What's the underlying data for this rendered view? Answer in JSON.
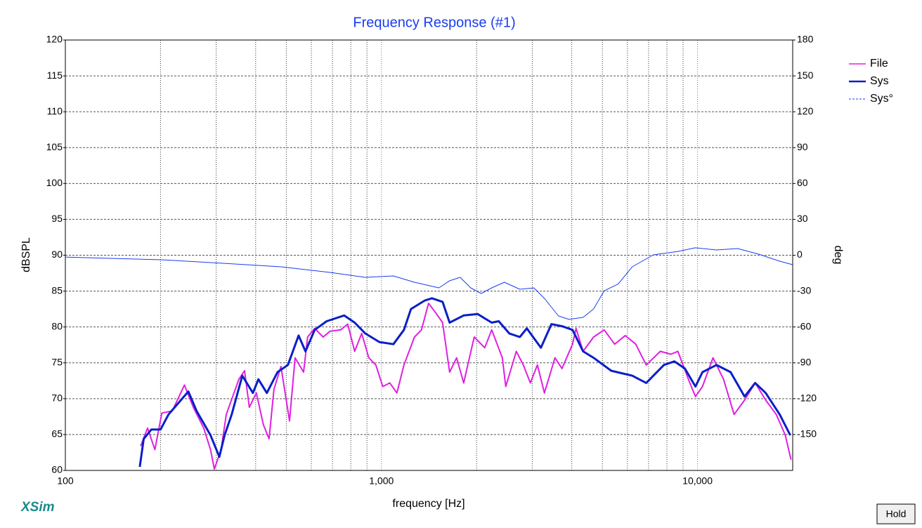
{
  "chart_data": {
    "type": "line",
    "title": "Frequency Response (#1)",
    "xlabel": "frequency [Hz]",
    "ylabel": "dBSPL",
    "y2label": "deg",
    "xscale": "log",
    "xlim": [
      100,
      20000
    ],
    "xticks": [
      100,
      {
        "value": 1000,
        "label": "1,000"
      },
      {
        "value": 10000,
        "label": "10,000"
      }
    ],
    "xminor": [
      200,
      300,
      400,
      500,
      600,
      700,
      800,
      900,
      2000,
      3000,
      4000,
      5000,
      6000,
      7000,
      8000,
      9000
    ],
    "ylim": [
      60,
      120
    ],
    "yticks": [
      60,
      65,
      70,
      75,
      80,
      85,
      90,
      95,
      100,
      105,
      110,
      115,
      120
    ],
    "y2lim": [
      -180,
      180
    ],
    "y2ticks": [
      -150,
      -120,
      -90,
      -60,
      -30,
      0,
      30,
      60,
      90,
      120,
      150,
      180
    ],
    "grid": true,
    "legend": "right",
    "series": [
      {
        "name": "File",
        "color": "#e020e0",
        "width": 2,
        "x": [
          173,
          182,
          192,
          202,
          218,
          238,
          254,
          274,
          288,
          296,
          311,
          323,
          354,
          369,
          382,
          402,
          423,
          441,
          457,
          481,
          512,
          533,
          567,
          584,
          615,
          654,
          688,
          743,
          782,
          823,
          866,
          912,
          960,
          1010,
          1063,
          1119,
          1178,
          1272,
          1339,
          1409,
          1483,
          1561,
          1643,
          1729,
          1820,
          1965,
          2122,
          2233,
          2412,
          2474,
          2671,
          2811,
          2959,
          3114,
          3278,
          3540,
          3725,
          4022,
          4126,
          4343,
          4690,
          5064,
          5468,
          5904,
          6375,
          6883,
          7624,
          8233,
          8666,
          9356,
          9847,
          10365,
          11192,
          12085,
          13050,
          14088,
          15216,
          16430,
          17741,
          18957,
          19753
        ],
        "values": [
          63.4,
          65.9,
          62.9,
          68.0,
          68.3,
          71.9,
          68.8,
          65.9,
          62.9,
          60.2,
          62.9,
          67.8,
          72.7,
          73.9,
          68.8,
          70.8,
          66.4,
          64.4,
          71.3,
          74.5,
          66.9,
          75.7,
          73.7,
          78.6,
          79.8,
          78.6,
          79.4,
          79.6,
          80.4,
          76.6,
          79.1,
          75.7,
          74.7,
          71.7,
          72.2,
          70.8,
          74.7,
          78.6,
          79.6,
          83.3,
          82.0,
          80.6,
          73.7,
          75.7,
          72.2,
          78.6,
          77.1,
          79.6,
          75.7,
          71.7,
          76.6,
          74.7,
          72.2,
          74.7,
          70.8,
          75.7,
          74.2,
          77.6,
          79.8,
          76.6,
          78.6,
          79.6,
          77.6,
          78.8,
          77.6,
          74.7,
          76.6,
          76.2,
          76.6,
          72.7,
          70.3,
          71.7,
          75.7,
          72.7,
          67.8,
          69.8,
          72.2,
          69.8,
          67.8,
          64.9,
          61.5
        ]
      },
      {
        "name": "Sys",
        "color": "#0a1ec8",
        "width": 3,
        "x": [
          172,
          177,
          187,
          200,
          212,
          245,
          260,
          288,
          307,
          319,
          336,
          363,
          392,
          408,
          434,
          469,
          506,
          547,
          575,
          615,
          671,
          762,
          823,
          889,
          985,
          1091,
          1178,
          1240,
          1373,
          1445,
          1561,
          1643,
          1820,
          2016,
          2233,
          2350,
          2538,
          2740,
          2884,
          3195,
          3450,
          3725,
          4022,
          4343,
          4690,
          5330,
          6215,
          6883,
          7824,
          8448,
          9120,
          9847,
          10365,
          11481,
          12719,
          14088,
          15216,
          16430,
          18197,
          19650
        ],
        "values": [
          60.5,
          64.4,
          65.7,
          65.7,
          67.8,
          71.0,
          68.3,
          64.9,
          61.9,
          64.9,
          67.8,
          73.2,
          70.8,
          72.7,
          70.8,
          73.7,
          74.7,
          78.8,
          76.6,
          79.6,
          80.8,
          81.6,
          80.6,
          79.1,
          77.9,
          77.6,
          79.6,
          82.5,
          83.7,
          84.0,
          83.5,
          80.6,
          81.6,
          81.8,
          80.6,
          80.8,
          79.1,
          78.6,
          79.8,
          77.1,
          80.4,
          80.1,
          79.6,
          76.6,
          75.7,
          73.9,
          73.2,
          72.2,
          74.7,
          75.2,
          74.2,
          71.7,
          73.7,
          74.7,
          73.7,
          70.3,
          72.2,
          70.8,
          67.8,
          64.9
        ]
      },
      {
        "name": "Sys°",
        "color": "#1a3cf0",
        "width": 1,
        "axis": "y2",
        "x": [
          100,
          202,
          319,
          481,
          688,
          889,
          1091,
          1272,
          1520,
          1643,
          1774,
          1916,
          2068,
          2233,
          2448,
          2740,
          3036,
          3278,
          3631,
          3921,
          4343,
          4690,
          5064,
          5610,
          6215,
          7244,
          8666,
          9847,
          11481,
          13388,
          15609,
          18197,
          20000
        ],
        "values": [
          -1.5,
          -3.8,
          -6.8,
          -9.7,
          -14.4,
          -18.5,
          -17.3,
          -22.6,
          -27.3,
          -21.4,
          -18.5,
          -27.3,
          -32.0,
          -27.3,
          -22.6,
          -28.5,
          -27.3,
          -36.1,
          -50.8,
          -53.7,
          -52.0,
          -44.9,
          -29.8,
          -24.0,
          -9.7,
          0.3,
          3.2,
          6.2,
          4.4,
          5.6,
          0.9,
          -5.0,
          -7.9
        ]
      }
    ]
  },
  "ui": {
    "brand": "XSim",
    "button": "Hold"
  }
}
